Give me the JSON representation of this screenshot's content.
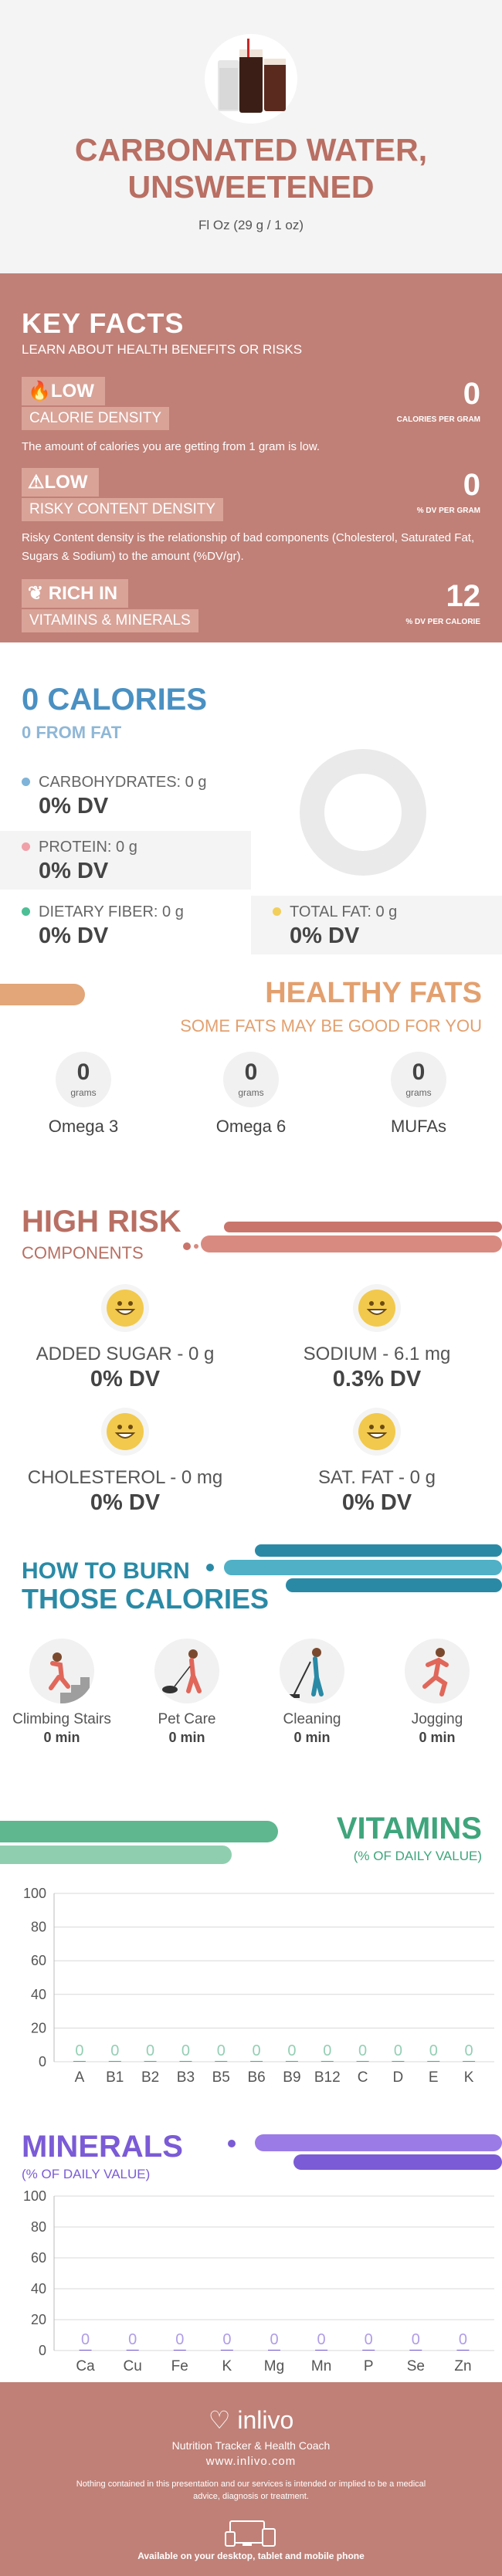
{
  "hero": {
    "title_line1": "CARBONATED WATER,",
    "title_line2": "UNSWEETENED",
    "serving": "Fl Oz (29 g / 1 oz)"
  },
  "key_facts": {
    "title": "KEY FACTS",
    "subtitle": "LEARN ABOUT HEALTH BENEFITS OR RISKS",
    "facts": [
      {
        "level": "LOW",
        "label": "CALORIE DENSITY",
        "value": "0",
        "unit": "CALORIES PER GRAM",
        "desc": "The amount of calories you are getting from 1 gram is low.",
        "icon": "flame-icon"
      },
      {
        "level": "LOW",
        "label": "RISKY CONTENT DENSITY",
        "value": "0",
        "unit": "% DV PER GRAM",
        "desc": "Risky Content density is the relationship of bad components (Cholesterol, Saturated Fat, Sugars & Sodium) to the amount (%DV/gr).",
        "icon": "warning-icon"
      },
      {
        "level": "RICH  IN",
        "label": "VITAMINS & MINERALS",
        "value": "12",
        "unit": "% DV PER CALORIE",
        "desc": "",
        "icon": "leaf-icon"
      }
    ]
  },
  "calories": {
    "title": "0 CALORIES",
    "from_fat": "0 FROM FAT",
    "nutrients": [
      {
        "label": "CARBOHYDRATES: 0 g",
        "value": "0% DV",
        "color": "#7fb3d9"
      },
      {
        "label": "PROTEIN: 0 g",
        "value": "0% DV",
        "color": "#f0a0a8"
      },
      {
        "label": "DIETARY FIBER: 0 g",
        "value": "0% DV",
        "color": "#4cbf96"
      },
      {
        "label": "TOTAL FAT: 0 g",
        "value": "0% DV",
        "color": "#f2cf5b"
      }
    ]
  },
  "fats": {
    "title": "HEALTHY FATS",
    "subtitle": "SOME FATS MAY BE GOOD FOR YOU",
    "items": [
      {
        "value": "0",
        "unit": "grams",
        "name": "Omega 3"
      },
      {
        "value": "0",
        "unit": "grams",
        "name": "Omega 6"
      },
      {
        "value": "0",
        "unit": "grams",
        "name": "MUFAs"
      }
    ]
  },
  "risk": {
    "title": "HIGH RISK",
    "subtitle": "COMPONENTS",
    "items": [
      {
        "label": "ADDED SUGAR - 0 g",
        "value": "0% DV"
      },
      {
        "label": "SODIUM - 6.1 mg",
        "value": "0.3% DV"
      },
      {
        "label": "CHOLESTEROL - 0 mg",
        "value": "0% DV"
      },
      {
        "label": "SAT. FAT - 0 g",
        "value": "0% DV"
      }
    ]
  },
  "burn": {
    "title_line1": "HOW TO BURN",
    "title_line2": "THOSE CALORIES",
    "activities": [
      {
        "label": "Climbing Stairs",
        "value": "0 min",
        "icon": "stairs-icon"
      },
      {
        "label": "Pet Care",
        "value": "0 min",
        "icon": "pet-care-icon"
      },
      {
        "label": "Cleaning",
        "value": "0 min",
        "icon": "cleaning-icon"
      },
      {
        "label": "Jogging",
        "value": "0 min",
        "icon": "jogging-icon"
      }
    ]
  },
  "vitamins": {
    "title": "VITAMINS",
    "subtitle": "(% OF DAILY VALUE)"
  },
  "minerals": {
    "title": "MINERALS",
    "subtitle": "(% OF DAILY VALUE)"
  },
  "chart_data": [
    {
      "type": "bar",
      "title": "VITAMINS",
      "categories": [
        "A",
        "B1",
        "B2",
        "B3",
        "B5",
        "B6",
        "B9",
        "B12",
        "C",
        "D",
        "E",
        "K"
      ],
      "values": [
        0,
        0,
        0,
        0,
        0,
        0,
        0,
        0,
        0,
        0,
        0,
        0
      ],
      "ylim": [
        0,
        100
      ],
      "yticks": [
        "0",
        "20",
        "40",
        "60",
        "80",
        "100"
      ],
      "grid": true,
      "color": "#4caf83"
    },
    {
      "type": "bar",
      "title": "MINERALS",
      "categories": [
        "Ca",
        "Cu",
        "Fe",
        "K",
        "Mg",
        "Mn",
        "P",
        "Se",
        "Zn"
      ],
      "values": [
        0,
        0,
        0,
        0,
        0,
        0,
        0,
        0,
        0
      ],
      "ylim": [
        0,
        100
      ],
      "yticks": [
        "0",
        "20",
        "40",
        "60",
        "80",
        "100"
      ],
      "grid": true,
      "color": "#7b5bd6"
    }
  ],
  "footer": {
    "logo": "inlivo",
    "tagline": "Nutrition Tracker & Health Coach",
    "url": "www.inlivo.com",
    "disclaimer": "Nothing contained in this presentation and our services is intended or implied to be a medical advice, diagnosis or treatment.",
    "available": "Available on your desktop, tablet and mobile phone"
  }
}
